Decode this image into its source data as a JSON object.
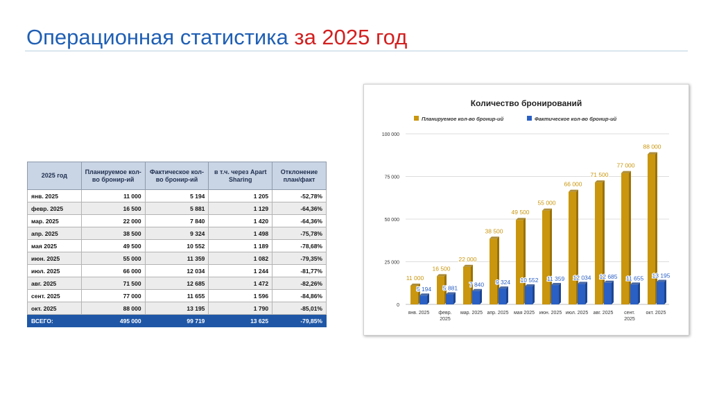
{
  "slide": {
    "title_part1": "Операционная статистика ",
    "title_part2": "за 2025 год"
  },
  "table": {
    "headers": [
      "2025 год",
      "Планируемое кол-во бронир-ий",
      "Фактическое кол-во бронир-ий",
      "в т.ч. через Apart Sharing",
      "Отклонение план/факт"
    ],
    "rows": [
      [
        "янв. 2025",
        "11 000",
        "5 194",
        "1 205",
        "-52,78%"
      ],
      [
        "февр. 2025",
        "16 500",
        "5 881",
        "1 129",
        "-64,36%"
      ],
      [
        "мар. 2025",
        "22 000",
        "7 840",
        "1 420",
        "-64,36%"
      ],
      [
        "апр. 2025",
        "38 500",
        "9 324",
        "1 498",
        "-75,78%"
      ],
      [
        "мая 2025",
        "49 500",
        "10 552",
        "1 189",
        "-78,68%"
      ],
      [
        "июн. 2025",
        "55 000",
        "11 359",
        "1 082",
        "-79,35%"
      ],
      [
        "июл. 2025",
        "66 000",
        "12 034",
        "1 244",
        "-81,77%"
      ],
      [
        "авг. 2025",
        "71 500",
        "12 685",
        "1 472",
        "-82,26%"
      ],
      [
        "сент. 2025",
        "77 000",
        "11 655",
        "1 596",
        "-84,86%"
      ],
      [
        "окт. 2025",
        "88 000",
        "13 195",
        "1 790",
        "-85,01%"
      ]
    ],
    "total": [
      "ВСЕГО:",
      "495 000",
      "99 719",
      "13 625",
      "-79,85%"
    ]
  },
  "chart_data": {
    "type": "bar",
    "title": "Количество бронирований",
    "categories": [
      "янв. 2025",
      "февр. 2025",
      "мар. 2025",
      "апр. 2025",
      "мая 2025",
      "июн. 2025",
      "июл. 2025",
      "авг. 2025",
      "сент. 2025",
      "окт. 2025"
    ],
    "series": [
      {
        "name": "Планируемое кол-во бронир-ий",
        "color": "#c9960e",
        "values": [
          11000,
          16500,
          22000,
          38500,
          49500,
          55000,
          66000,
          71500,
          77000,
          88000
        ],
        "labels": [
          "11 000",
          "16 500",
          "22 000",
          "38 500",
          "49 500",
          "55 000",
          "66 000",
          "71 500",
          "77 000",
          "88 000"
        ]
      },
      {
        "name": "Фактическое кол-во бронир-ий",
        "color": "#2a5fc4",
        "values": [
          5194,
          5881,
          7840,
          9324,
          10552,
          11359,
          12034,
          12685,
          11655,
          13195
        ],
        "labels": [
          "5 194",
          "5 881",
          "7 840",
          "9 324",
          "10 552",
          "11 359",
          "12 034",
          "12 685",
          "11 655",
          "13 195"
        ]
      }
    ],
    "ylim": [
      0,
      100000
    ],
    "yticks": [
      0,
      25000,
      50000,
      75000,
      100000
    ],
    "ytick_labels": [
      "0",
      "25 000",
      "50 000",
      "75 000",
      "100 000"
    ],
    "legend_position": "top",
    "grid": true
  }
}
